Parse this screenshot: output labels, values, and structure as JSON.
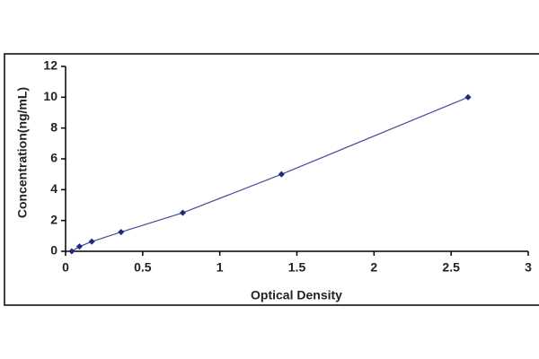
{
  "chart_data": {
    "type": "scatter",
    "x_label": "Optical Density",
    "y_label": "Concentration(ng/mL)",
    "x": [
      0.04,
      0.09,
      0.17,
      0.36,
      0.76,
      1.4,
      2.61
    ],
    "values": [
      0,
      0.31,
      0.63,
      1.25,
      2.5,
      5,
      10
    ],
    "color": "#1f2a7a",
    "line_color": "#4a4a9a",
    "xlim": [
      0,
      3
    ],
    "xticks": [
      0,
      0.5,
      1,
      1.5,
      2,
      2.5,
      3
    ],
    "ylim": [
      0,
      12
    ],
    "yticks": [
      0,
      2,
      4,
      6,
      8,
      10,
      12
    ],
    "grid": false
  }
}
